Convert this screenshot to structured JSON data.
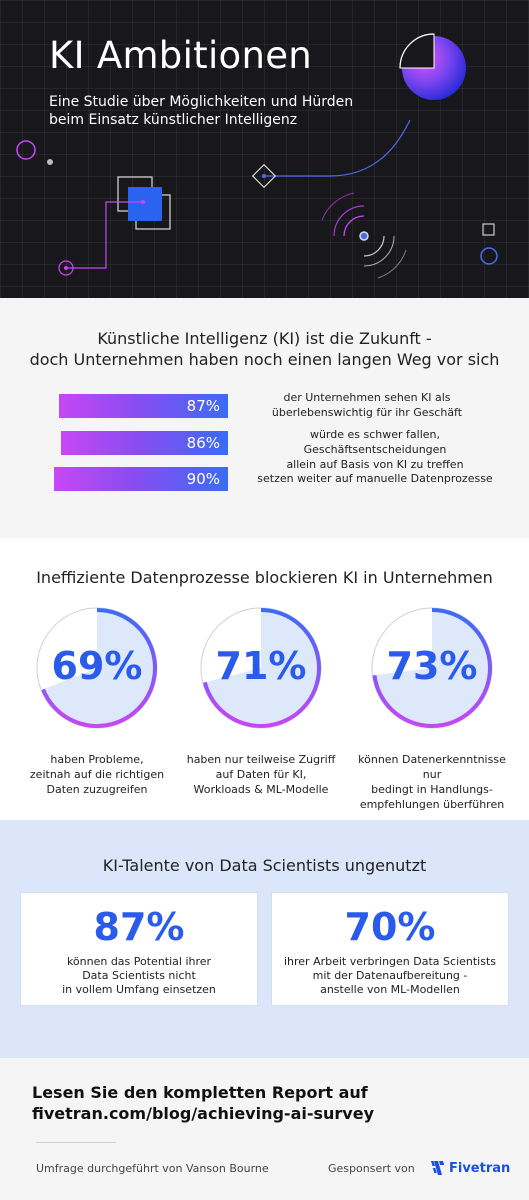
{
  "hero": {
    "title": "KI Ambitionen",
    "subtitle_line1": "Eine Studie über Möglichkeiten und Hürden",
    "subtitle_line2": "beim Einsatz künstlicher Intelligenz"
  },
  "section1": {
    "title_line1": "Künstliche Intelligenz (KI) ist die Zukunft -",
    "title_line2": "doch Unternehmen haben noch einen langen Weg vor sich",
    "stats": [
      {
        "value": "87%",
        "text_line1": "der Unternehmen sehen KI als",
        "text_line2": "überlebenswichtig für ihr Geschäft"
      },
      {
        "value": "86%",
        "text_line1": "würde es schwer fallen, Geschäftsentscheidungen",
        "text_line2": "allein auf Basis von KI zu treffen"
      },
      {
        "value": "90%",
        "text_line1": "setzen weiter auf manuelle Datenprozesse",
        "text_line2": ""
      }
    ]
  },
  "section2": {
    "title": "Ineffiziente Datenprozesse blockieren KI in Unternehmen",
    "donuts": [
      {
        "value": "69%",
        "fraction": 0.69,
        "caption_line1": "haben Probleme,",
        "caption_line2": "zeitnah auf die richtigen",
        "caption_line3": "Daten zuzugreifen"
      },
      {
        "value": "71%",
        "fraction": 0.71,
        "caption_line1": "haben nur teilweise Zugriff",
        "caption_line2": "auf Daten für KI,",
        "caption_line3": "Workloads & ML-Modelle"
      },
      {
        "value": "73%",
        "fraction": 0.73,
        "caption_line1": "können Datenerkenntnisse nur",
        "caption_line2": "bedingt in Handlungs-",
        "caption_line3": "empfehlungen überführen"
      }
    ]
  },
  "section3": {
    "title": "KI-Talente von Data Scientists ungenutzt",
    "cards": [
      {
        "value": "87%",
        "text_line1": "können das Potential ihrer",
        "text_line2": "Data Scientists nicht",
        "text_line3": "in vollem Umfang einsetzen"
      },
      {
        "value": "70%",
        "text_line1": "ihrer Arbeit verbringen Data Scientists",
        "text_line2": "mit der Datenaufbereitung -",
        "text_line3": "anstelle von ML-Modellen"
      }
    ]
  },
  "footer": {
    "cta_line1": "Lesen Sie den kompletten Report auf",
    "cta_line2": "fivetran.com/blog/achieving-ai-survey",
    "credit": "Umfrage durchgeführt von Vanson Bourne",
    "sponsor_label": "Gesponsert von",
    "brand": "Fivetran"
  },
  "colors": {
    "accent_blue": "#2a5bea",
    "accent_purple": "#c847f5",
    "hero_bg": "#17171c"
  }
}
